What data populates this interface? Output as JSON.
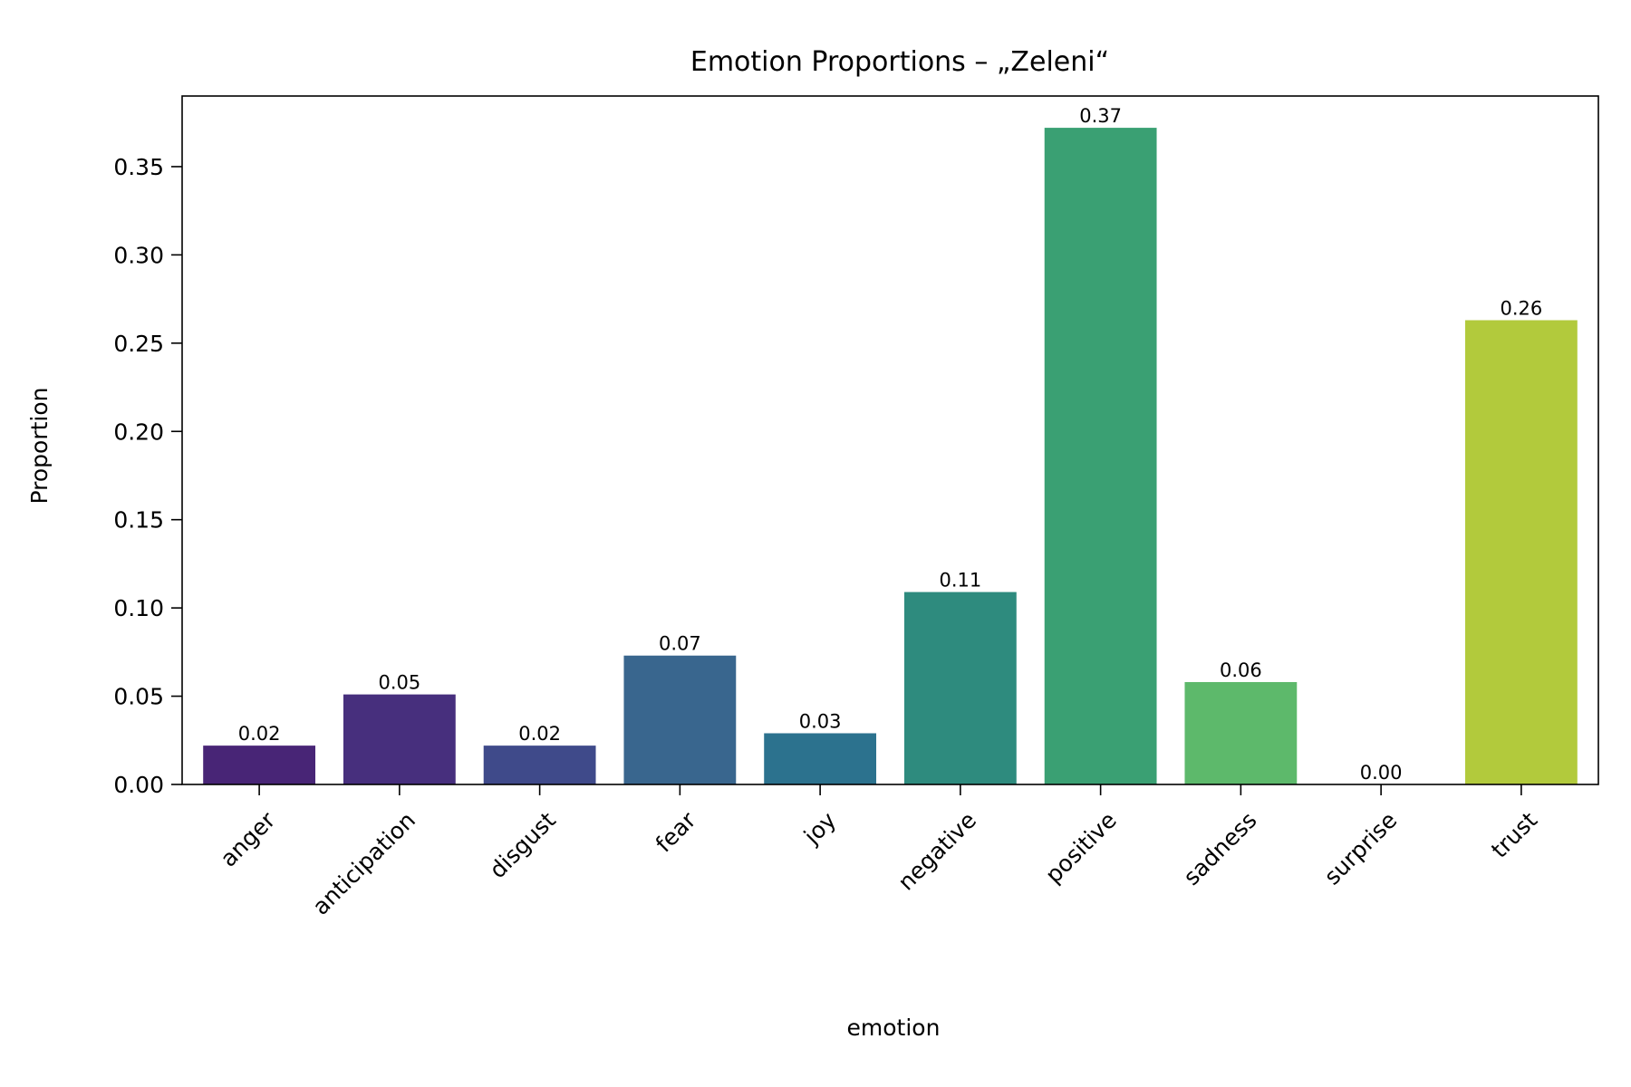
{
  "chart_data": {
    "type": "bar",
    "title": "Emotion Proportions – „Zeleni“",
    "xlabel": "emotion",
    "ylabel": "Proportion",
    "categories": [
      "anger",
      "anticipation",
      "disgust",
      "fear",
      "joy",
      "negative",
      "positive",
      "sadness",
      "surprise",
      "trust"
    ],
    "values": [
      0.022,
      0.051,
      0.022,
      0.073,
      0.029,
      0.109,
      0.372,
      0.058,
      0.0,
      0.263
    ],
    "value_labels": [
      "0.02",
      "0.05",
      "0.02",
      "0.07",
      "0.03",
      "0.11",
      "0.37",
      "0.06",
      "0.00",
      "0.26"
    ],
    "colors": [
      "#482576",
      "#472f7d",
      "#3f4a8a",
      "#39668e",
      "#2c728e",
      "#2e8b7e",
      "#3aa073",
      "#5db96b",
      "#a8cf47",
      "#b2ca3c"
    ],
    "ylim": [
      0,
      0.39
    ],
    "yticks": [
      0.0,
      0.05,
      0.1,
      0.15,
      0.2,
      0.25,
      0.3,
      0.35
    ],
    "ytick_labels": [
      "0.00",
      "0.05",
      "0.10",
      "0.15",
      "0.20",
      "0.25",
      "0.30",
      "0.35"
    ],
    "grid": false,
    "legend": "none"
  }
}
